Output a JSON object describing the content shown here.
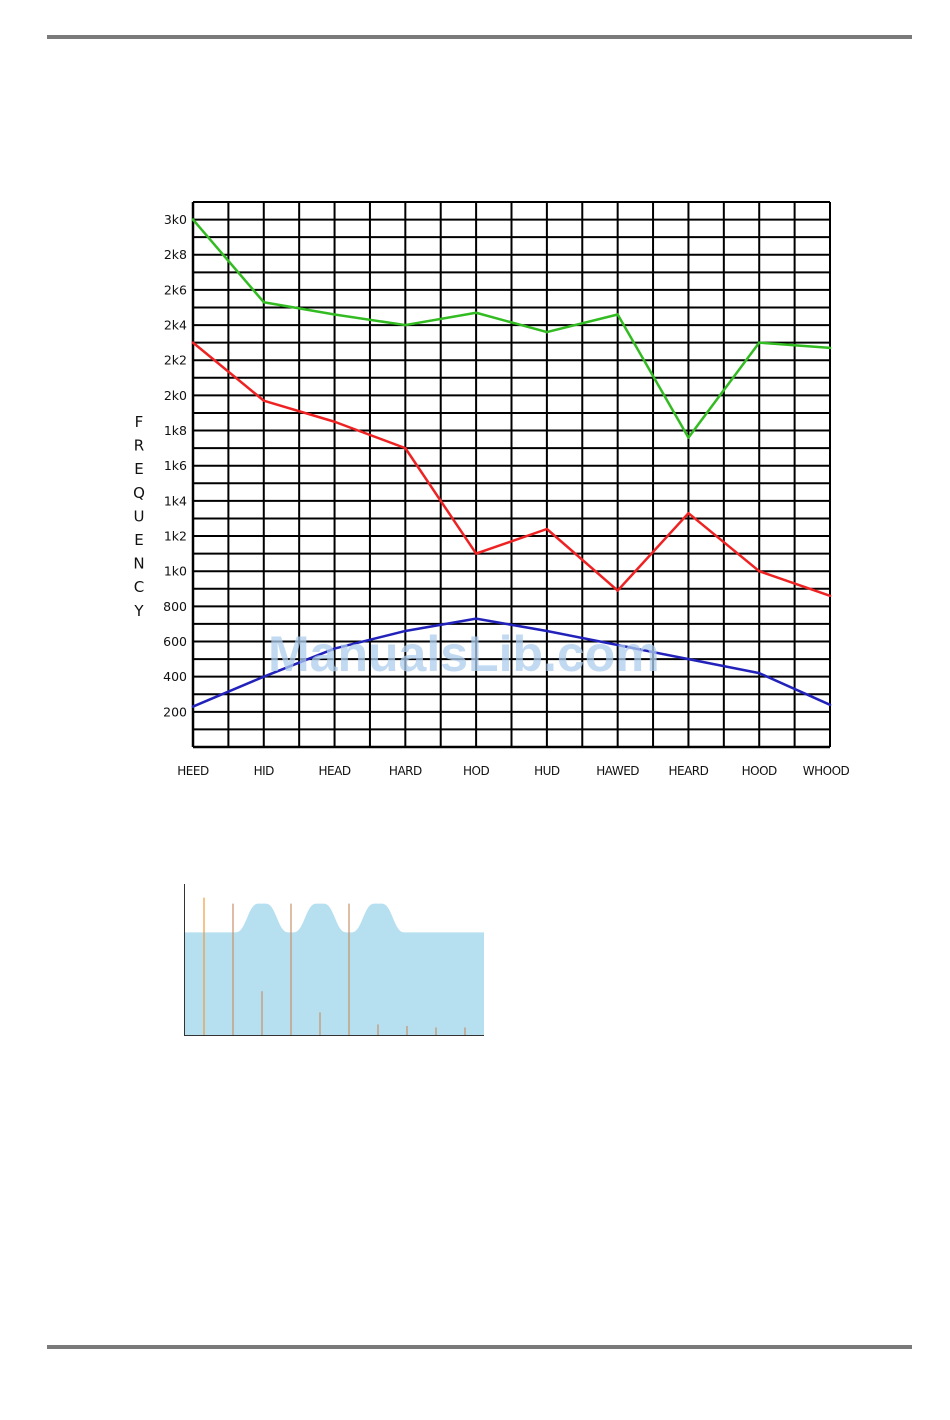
{
  "watermark": "ManualsLib.com",
  "chart_data": [
    {
      "type": "line",
      "title": "",
      "xlabel": "",
      "ylabel": "FREQUENCY",
      "ylabel_letters": [
        "F",
        "R",
        "E",
        "Q",
        "U",
        "E",
        "N",
        "C",
        "Y"
      ],
      "categories": [
        "HEED",
        "HID",
        "HEAD",
        "HARD",
        "HOD",
        "HUD",
        "HAWED",
        "HEARD",
        "HOOD",
        "WHOOD"
      ],
      "ylim": [
        0,
        3100
      ],
      "yticks": [
        200,
        400,
        600,
        800,
        1000,
        1200,
        1400,
        1600,
        1800,
        2000,
        2200,
        2400,
        2600,
        2800,
        3000
      ],
      "ytick_labels": [
        "200",
        "400",
        "600",
        "800",
        "1k0",
        "1k2",
        "1k4",
        "1k6",
        "1k8",
        "2k0",
        "2k2",
        "2k4",
        "2k6",
        "2k8",
        "3k0"
      ],
      "grid": true,
      "series": [
        {
          "color": "#2222bb",
          "values": [
            230,
            400,
            560,
            660,
            730,
            660,
            580,
            500,
            420,
            240
          ]
        },
        {
          "color": "#ee2222",
          "values": [
            2300,
            1970,
            1850,
            1700,
            1100,
            1240,
            890,
            1330,
            1000,
            860
          ]
        },
        {
          "color": "#33bb22",
          "values": [
            3000,
            2530,
            2460,
            2400,
            2470,
            2360,
            2460,
            1760,
            2300,
            2270
          ]
        }
      ]
    },
    {
      "type": "bar",
      "title": "",
      "xlabel": "",
      "ylabel": "",
      "envelope_color": "#b6e0ef",
      "harmonic_color": "#c8906a",
      "fundamental_color": "#ef9b3c",
      "envelope_baseline": 0.68,
      "envelope_peaks": [
        {
          "x": 2,
          "level": 0.87
        },
        {
          "x": 4,
          "level": 0.87
        },
        {
          "x": 6,
          "level": 0.87
        }
      ],
      "harmonics_x": [
        0,
        1,
        2,
        3,
        4,
        5,
        6,
        7,
        8,
        9,
        10
      ],
      "harmonics_level": [
        0.87,
        0.87,
        0.29,
        0.87,
        0.15,
        0.87,
        0.07,
        0.06,
        0.05,
        0.05,
        0.0
      ]
    }
  ]
}
